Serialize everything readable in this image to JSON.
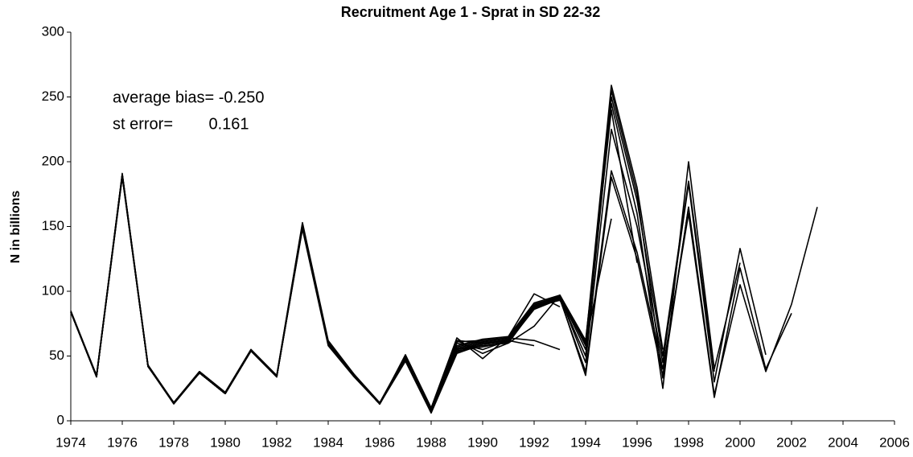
{
  "chart_data": {
    "type": "line",
    "title": "Recruitment Age 1 - Sprat in SD 22-32",
    "y_label": "N in billions",
    "annotations": [
      "average bias= -0.250",
      "st error=        0.161"
    ],
    "x": [
      1974,
      1975,
      1976,
      1977,
      1978,
      1979,
      1980,
      1981,
      1982,
      1983,
      1984,
      1985,
      1986,
      1987,
      1988,
      1989,
      1990,
      1991,
      1992,
      1993,
      1994,
      1995,
      1996,
      1997,
      1998,
      1999,
      2000,
      2001,
      2002,
      2003
    ],
    "series": [
      {
        "color": "#000000",
        "values": [
          84,
          34,
          190,
          42,
          14,
          37,
          21,
          54,
          34,
          150,
          60,
          35,
          13,
          48,
          7,
          55,
          58,
          60,
          87,
          95,
          35,
          188,
          125,
          35,
          165,
          20,
          105,
          38,
          90,
          165
        ]
      },
      {
        "color": "#000000",
        "values": [
          84,
          34,
          189,
          42,
          14,
          37,
          21,
          54,
          34,
          149,
          59,
          35,
          13,
          47,
          7,
          54,
          57,
          61,
          86,
          94,
          38,
          193,
          130,
          40,
          160,
          18,
          118,
          40,
          83,
          null
        ]
      },
      {
        "color": "#000000",
        "values": [
          84,
          35,
          190,
          43,
          14,
          38,
          21,
          55,
          34,
          151,
          60,
          35,
          13,
          48,
          8,
          53,
          60,
          62,
          88,
          96,
          45,
          225,
          150,
          45,
          183,
          30,
          133,
          51,
          null,
          null
        ]
      },
      {
        "color": "#000000",
        "values": [
          84,
          34,
          188,
          42,
          13,
          37,
          21,
          54,
          34,
          148,
          58,
          34,
          13,
          46,
          6,
          52,
          59,
          61,
          87,
          95,
          50,
          245,
          160,
          25,
          200,
          40,
          122,
          null,
          null,
          null
        ]
      },
      {
        "color": "#000000",
        "values": [
          85,
          35,
          190,
          43,
          14,
          38,
          22,
          55,
          35,
          152,
          61,
          36,
          13,
          49,
          8,
          56,
          61,
          63,
          88,
          96,
          55,
          250,
          170,
          50,
          185,
          38,
          null,
          null,
          null,
          null
        ]
      },
      {
        "color": "#000000",
        "values": [
          84,
          34,
          189,
          42,
          14,
          37,
          21,
          54,
          34,
          150,
          60,
          35,
          13,
          48,
          7,
          55,
          60,
          62,
          89,
          97,
          58,
          255,
          175,
          33,
          165,
          null,
          null,
          null,
          null,
          null
        ]
      },
      {
        "color": "#000000",
        "values": [
          84,
          35,
          191,
          43,
          14,
          38,
          22,
          55,
          35,
          153,
          62,
          36,
          14,
          50,
          9,
          57,
          62,
          64,
          90,
          96,
          60,
          259,
          180,
          55,
          null,
          null,
          null,
          null,
          null,
          null
        ]
      },
      {
        "color": "#000000",
        "values": [
          84,
          34,
          190,
          42,
          14,
          37,
          21,
          54,
          34,
          151,
          61,
          35,
          13,
          49,
          8,
          58,
          63,
          65,
          91,
          97,
          62,
          240,
          122,
          null,
          null,
          null,
          null,
          null,
          null,
          null
        ]
      },
      {
        "color": "#000000",
        "values": [
          84,
          34,
          190,
          42,
          14,
          37,
          21,
          54,
          34,
          150,
          60,
          35,
          13,
          48,
          7,
          60,
          55,
          62,
          88,
          93,
          60,
          156,
          null,
          null,
          null,
          null,
          null,
          null,
          null,
          null
        ]
      },
      {
        "color": "#000000",
        "values": [
          84,
          34,
          189,
          42,
          14,
          37,
          21,
          54,
          34,
          149,
          60,
          35,
          13,
          48,
          7,
          62,
          52,
          60,
          73,
          97,
          62,
          null,
          null,
          null,
          null,
          null,
          null,
          null,
          null,
          null
        ]
      },
      {
        "color": "#000000",
        "values": [
          84,
          34,
          190,
          42,
          14,
          37,
          21,
          54,
          34,
          150,
          60,
          35,
          13,
          51,
          10,
          64,
          48,
          65,
          98,
          88,
          null,
          null,
          null,
          null,
          null,
          null,
          null,
          null,
          null,
          null
        ]
      },
      {
        "color": "#000000",
        "values": [
          84,
          34,
          190,
          42,
          14,
          37,
          21,
          54,
          34,
          150,
          60,
          35,
          13,
          48,
          8,
          61,
          62,
          64,
          62,
          55,
          null,
          null,
          null,
          null,
          null,
          null,
          null,
          null,
          null,
          null
        ]
      },
      {
        "color": "#000000",
        "values": [
          84,
          34,
          190,
          42,
          14,
          37,
          21,
          54,
          34,
          150,
          60,
          35,
          13,
          48,
          7,
          62,
          60,
          62,
          58,
          null,
          null,
          null,
          null,
          null,
          null,
          null,
          null,
          null,
          null,
          null
        ]
      }
    ],
    "xlim": [
      1974,
      2006
    ],
    "xticks": [
      1974,
      1976,
      1978,
      1980,
      1982,
      1984,
      1986,
      1988,
      1990,
      1992,
      1994,
      1996,
      1998,
      2000,
      2002,
      2004,
      2006
    ],
    "ylim": [
      0,
      300
    ],
    "yticks": [
      0,
      50,
      100,
      150,
      200,
      250,
      300
    ],
    "grid": false
  }
}
